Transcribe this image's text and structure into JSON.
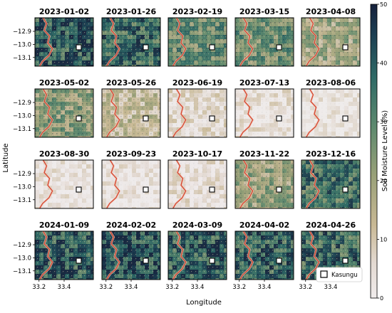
{
  "chart_data": {
    "type": "heatmap",
    "title": "",
    "xlabel": "Longitude",
    "ylabel": "Latitude",
    "x_ticks": [
      "33.2",
      "33.4"
    ],
    "y_ticks": [
      "−12.9",
      "−13.0",
      "−13.1"
    ],
    "colorbar": {
      "label": "Soil Moisture Level (%)",
      "range": [
        0,
        50
      ],
      "ticks": [
        "0",
        "10",
        "20",
        "30",
        "40",
        "50"
      ]
    },
    "legend": {
      "label": "Kasungu",
      "placement": "bottom-right"
    },
    "panels": [
      {
        "date": "2023-01-02",
        "moisture_level": 0.8
      },
      {
        "date": "2023-01-26",
        "moisture_level": 0.72
      },
      {
        "date": "2023-02-19",
        "moisture_level": 0.55
      },
      {
        "date": "2023-03-15",
        "moisture_level": 0.52
      },
      {
        "date": "2023-04-08",
        "moisture_level": 0.38
      },
      {
        "date": "2023-05-02",
        "moisture_level": 0.45
      },
      {
        "date": "2023-05-26",
        "moisture_level": 0.25
      },
      {
        "date": "2023-06-19",
        "moisture_level": 0.1
      },
      {
        "date": "2023-07-13",
        "moisture_level": 0.07
      },
      {
        "date": "2023-08-06",
        "moisture_level": 0.04
      },
      {
        "date": "2023-08-30",
        "moisture_level": 0.05
      },
      {
        "date": "2023-09-23",
        "moisture_level": 0.05
      },
      {
        "date": "2023-10-17",
        "moisture_level": 0.08
      },
      {
        "date": "2023-11-22",
        "moisture_level": 0.4
      },
      {
        "date": "2023-12-16",
        "moisture_level": 0.68
      },
      {
        "date": "2024-01-09",
        "moisture_level": 0.8
      },
      {
        "date": "2024-02-02",
        "moisture_level": 0.82
      },
      {
        "date": "2024-03-09",
        "moisture_level": 0.78
      },
      {
        "date": "2024-04-02",
        "moisture_level": 0.76
      },
      {
        "date": "2024-04-26",
        "moisture_level": 0.72
      }
    ]
  }
}
